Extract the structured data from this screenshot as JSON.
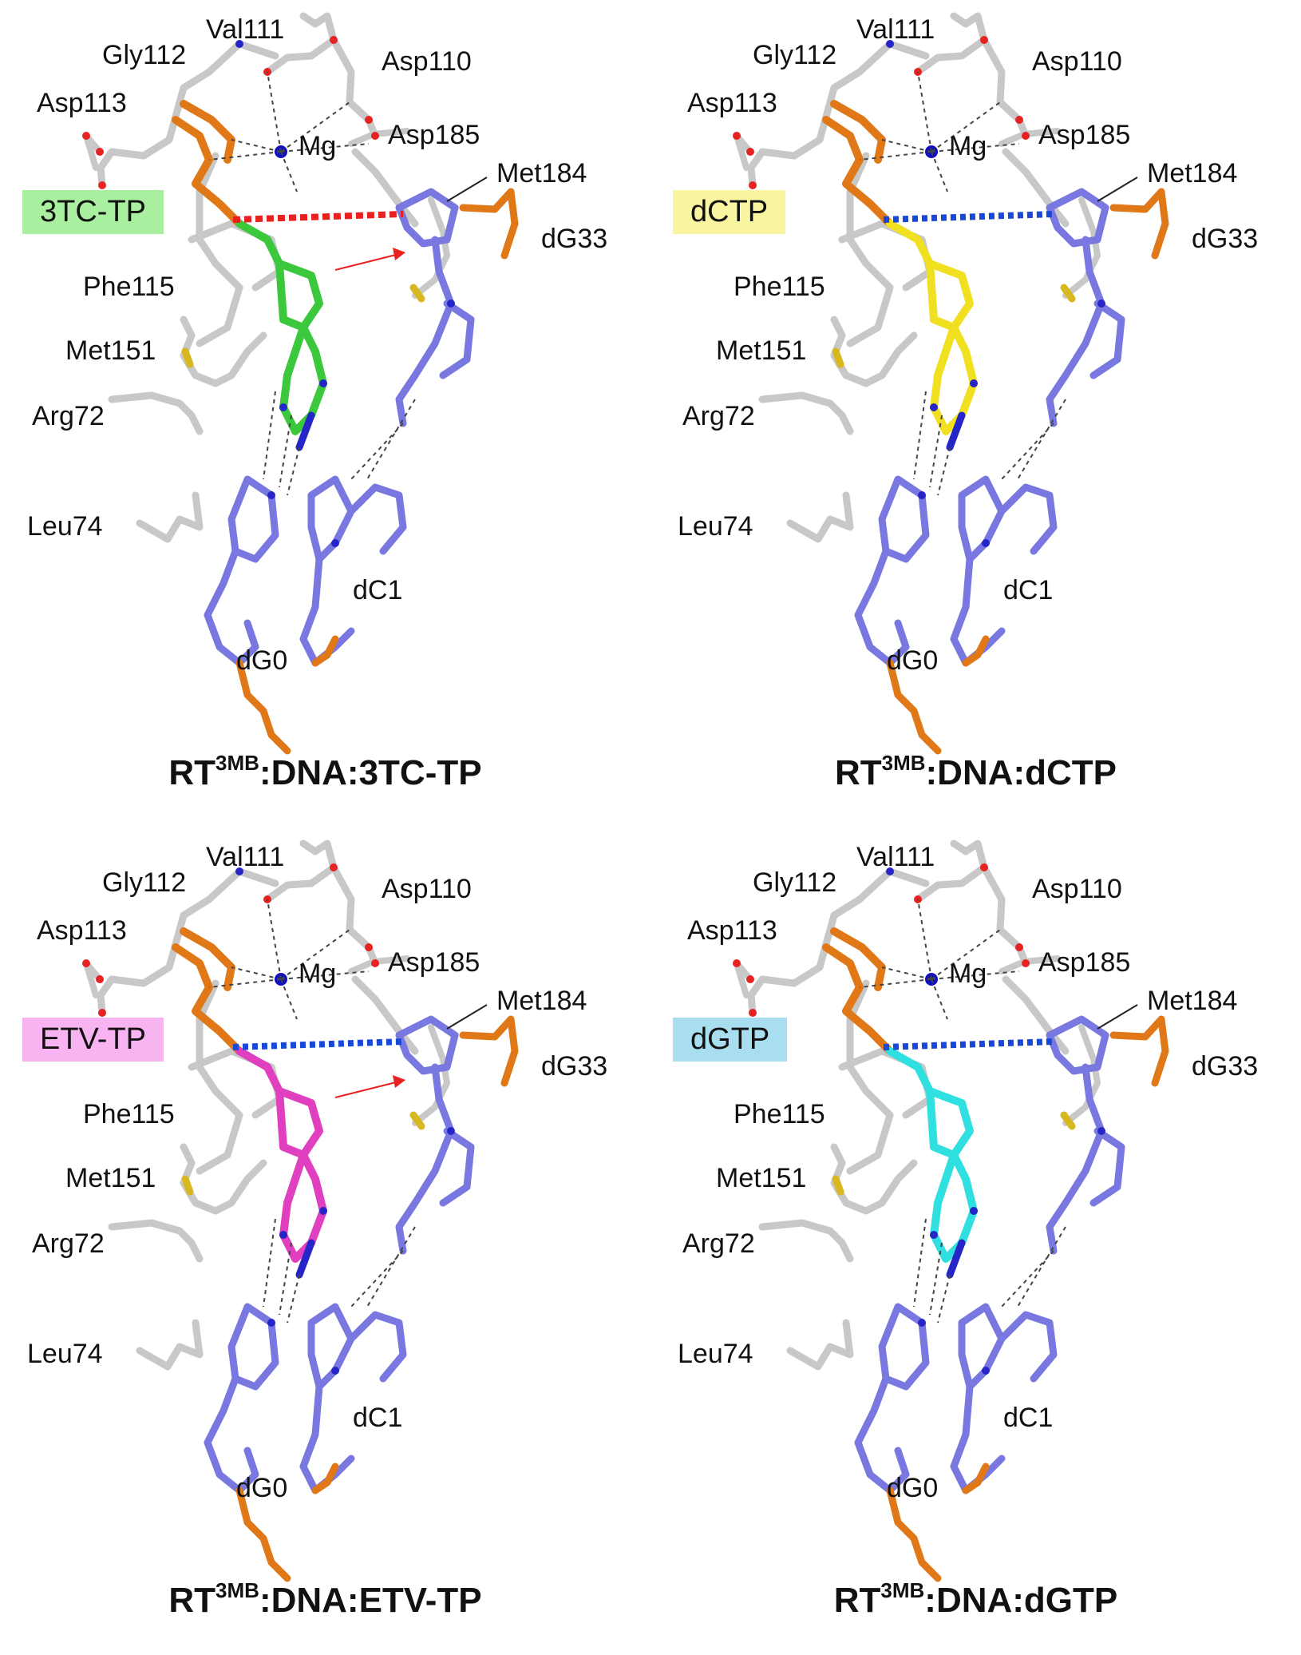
{
  "colors": {
    "protein": "#c8c8c8",
    "dna": "#7878e0",
    "nitrogen": "#2626c8",
    "oxygen": "#e62222",
    "phosphate": "#e07818",
    "sulfur": "#d8b820",
    "magnesium": "#1010c0",
    "clash_line": "#e82020",
    "hbond_line": "#1848d8"
  },
  "panels": [
    {
      "id": "3tc",
      "ligand_label": "3TC-TP",
      "ligand_box_color": "#a8f0a0",
      "ligand_color": "#3cc83c",
      "interaction_style": "red",
      "show_arrow": true,
      "caption_prefix": "RT",
      "caption_sup": "3MB",
      "caption_suffix": ":DNA:3TC-TP",
      "labels": {
        "val111": "Val111",
        "gly112": "Gly112",
        "asp110": "Asp110",
        "asp113": "Asp113",
        "mg": "Mg",
        "asp185": "Asp185",
        "met184": "Met184",
        "dg33": "dG33",
        "phe115": "Phe115",
        "met151": "Met151",
        "arg72": "Arg72",
        "leu74": "Leu74",
        "dc1": "dC1",
        "dg0": "dG0"
      }
    },
    {
      "id": "dctp",
      "ligand_label": "dCTP",
      "ligand_box_color": "#faf5a0",
      "ligand_color": "#f0e020",
      "interaction_style": "blue",
      "show_arrow": false,
      "caption_prefix": "RT",
      "caption_sup": "3MB",
      "caption_suffix": ":DNA:dCTP",
      "labels": {
        "val111": "Val111",
        "gly112": "Gly112",
        "asp110": "Asp110",
        "asp113": "Asp113",
        "mg": "Mg",
        "asp185": "Asp185",
        "met184": "Met184",
        "dg33": "dG33",
        "phe115": "Phe115",
        "met151": "Met151",
        "arg72": "Arg72",
        "leu74": "Leu74",
        "dc1": "dC1",
        "dg0": "dG0"
      }
    },
    {
      "id": "etv",
      "ligand_label": "ETV-TP",
      "ligand_box_color": "#f8b4f0",
      "ligand_color": "#e040c0",
      "interaction_style": "blue",
      "show_arrow": true,
      "caption_prefix": "RT",
      "caption_sup": "3MB",
      "caption_suffix": ":DNA:ETV-TP",
      "labels": {
        "val111": "Val111",
        "gly112": "Gly112",
        "asp110": "Asp110",
        "asp113": "Asp113",
        "mg": "Mg",
        "asp185": "Asp185",
        "met184": "Met184",
        "dg33": "dG33",
        "phe115": "Phe115",
        "met151": "Met151",
        "arg72": "Arg72",
        "leu74": "Leu74",
        "dc1": "dC1",
        "dg0": "dG0"
      }
    },
    {
      "id": "dgtp",
      "ligand_label": "dGTP",
      "ligand_box_color": "#a8def0",
      "ligand_color": "#30e0e0",
      "interaction_style": "blue",
      "show_arrow": false,
      "caption_prefix": "RT",
      "caption_sup": "3MB",
      "caption_suffix": ":DNA:dGTP",
      "labels": {
        "val111": "Val111",
        "gly112": "Gly112",
        "asp110": "Asp110",
        "asp113": "Asp113",
        "mg": "Mg",
        "asp185": "Asp185",
        "met184": "Met184",
        "dg33": "dG33",
        "phe115": "Phe115",
        "met151": "Met151",
        "arg72": "Arg72",
        "leu74": "Leu74",
        "dc1": "dC1",
        "dg0": "dG0"
      }
    }
  ]
}
